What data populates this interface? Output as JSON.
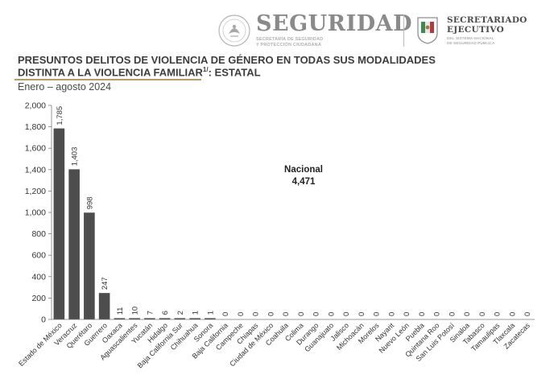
{
  "header": {
    "seguridad_logo": {
      "title": "SEGURIDAD",
      "subtitle_line1": "SECRETARÍA DE SEGURIDAD",
      "subtitle_line2": "Y PROTECCIÓN CIUDADANA"
    },
    "secretariado_logo": {
      "title_line1": "SECRETARIADO",
      "title_line2": "EJECUTIVO",
      "subtitle_line1": "DEL SISTEMA NACIONAL",
      "subtitle_line2": "DE SEGURIDAD PÚBLICA"
    }
  },
  "title": {
    "line1": "PRESUNTOS DELITOS DE VIOLENCIA DE GÉNERO EN TODAS SUS MODALIDADES",
    "line2": "DISTINTA A LA VIOLENCIA FAMILIAR",
    "line2_superscript": "1/",
    "line2_suffix": ": ESTATAL"
  },
  "subtitle": "Enero – agosto 2024",
  "colors": {
    "bar": "#4d4d4d",
    "accent_underline": "#b59a6b",
    "text": "#3d3d3d"
  },
  "chart_data": {
    "type": "bar",
    "categories": [
      "Estado de México",
      "Veracruz",
      "Querétaro",
      "Guerrero",
      "Oaxaca",
      "Aguascalientes",
      "Yucatán",
      "Hidalgo",
      "Baja California Sur",
      "Chihuahua",
      "Sonora",
      "Baja California",
      "Campeche",
      "Chiapas",
      "Ciudad de México",
      "Coahuila",
      "Colima",
      "Durango",
      "Guanajuato",
      "Jalisco",
      "Michoacán",
      "Morelos",
      "Nayarit",
      "Nuevo León",
      "Puebla",
      "Quintana Roo",
      "San Luis Potosí",
      "Sinaloa",
      "Tabasco",
      "Tamaulipas",
      "Tlaxcala",
      "Zacatecas"
    ],
    "values": [
      1785,
      1403,
      998,
      247,
      11,
      10,
      7,
      6,
      2,
      1,
      1,
      0,
      0,
      0,
      0,
      0,
      0,
      0,
      0,
      0,
      0,
      0,
      0,
      0,
      0,
      0,
      0,
      0,
      0,
      0,
      0,
      0
    ],
    "value_labels": [
      "1,785",
      "1,403",
      "998",
      "247",
      "11",
      "10",
      "7",
      "6",
      "2",
      "1",
      "1",
      "0",
      "0",
      "0",
      "0",
      "0",
      "0",
      "0",
      "0",
      "0",
      "0",
      "0",
      "0",
      "0",
      "0",
      "0",
      "0",
      "0",
      "0",
      "0",
      "0",
      "0"
    ],
    "ylim": [
      0,
      2000
    ],
    "yticks": [
      0,
      200,
      400,
      600,
      800,
      1000,
      1200,
      1400,
      1600,
      1800,
      2000
    ],
    "ytick_labels": [
      "0",
      "200",
      "400",
      "600",
      "800",
      "1,000",
      "1,200",
      "1,400",
      "1,600",
      "1,800",
      "2,000"
    ],
    "annotation": {
      "label": "Nacional",
      "value": "4,471"
    },
    "grid": false,
    "legend": "none"
  }
}
